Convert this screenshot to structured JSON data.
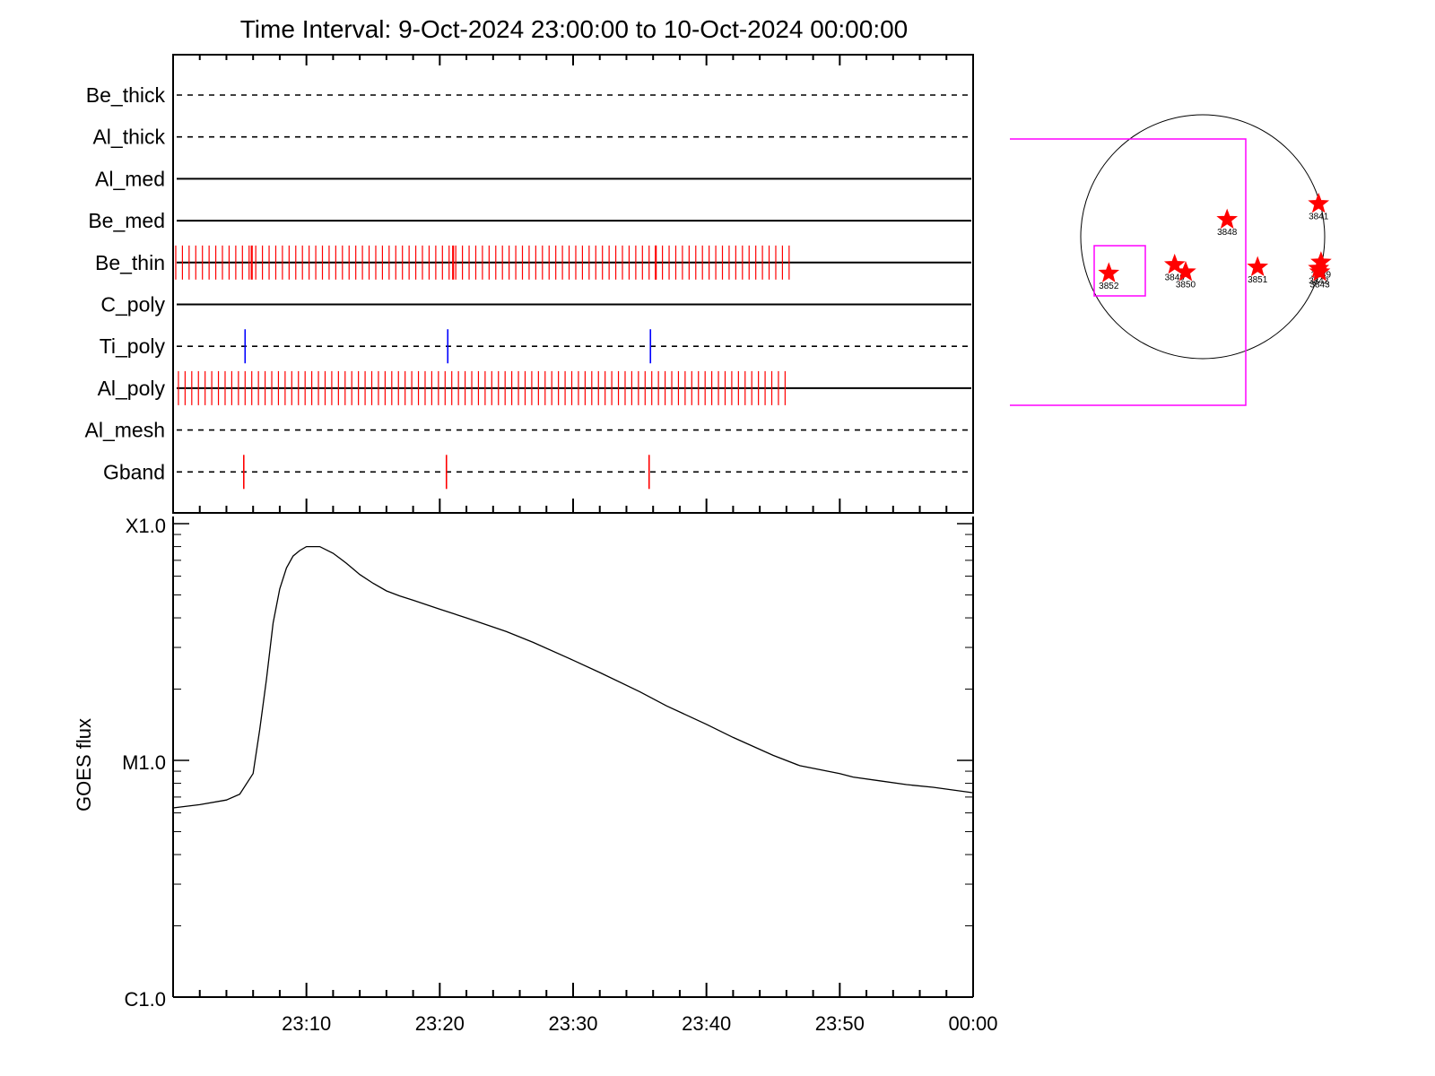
{
  "chart_data": [
    {
      "type": "timeline",
      "title": "Time Interval:  9-Oct-2024 23:00:00 to 10-Oct-2024 00:00:00",
      "x_range_minutes": [
        0,
        60
      ],
      "tick_labels": [
        "23:10",
        "23:20",
        "23:30",
        "23:40",
        "23:50",
        "00:00"
      ],
      "rows": [
        {
          "name": "Be_thick",
          "line": "dashed",
          "markers": []
        },
        {
          "name": "Al_thick",
          "line": "dashed",
          "markers": []
        },
        {
          "name": "Al_med",
          "line": "solid",
          "markers": []
        },
        {
          "name": "Be_med",
          "line": "solid",
          "markers": []
        },
        {
          "name": "Be_thin",
          "line": "solid",
          "marker_color": "#ff0000",
          "marker_range_minutes": [
            0.2,
            46.2
          ],
          "marker_step_minutes": 0.5,
          "tall_marker_minutes": [
            5.9,
            21.0,
            36.2
          ]
        },
        {
          "name": "C_poly",
          "line": "solid",
          "markers": []
        },
        {
          "name": "Ti_poly",
          "line": "dashed",
          "marker_color": "#0000ff",
          "markers": [
            5.4,
            20.6,
            35.8
          ]
        },
        {
          "name": "Al_poly",
          "line": "solid",
          "marker_color": "#ff0000",
          "marker_range_minutes": [
            0.4,
            46.0
          ],
          "marker_step_minutes": 0.5,
          "tall_marker_minutes": []
        },
        {
          "name": "Al_mesh",
          "line": "dashed",
          "markers": []
        },
        {
          "name": "Gband",
          "line": "dashed",
          "marker_color": "#ff0000",
          "markers": [
            5.3,
            20.5,
            35.7
          ]
        }
      ]
    },
    {
      "type": "line",
      "ylabel": "GOES flux",
      "y_scale": "log",
      "y_range_wm2": [
        1e-06,
        0.0001
      ],
      "y_tick_labels": [
        "C1.0",
        "M1.0",
        "X1.0"
      ],
      "y_tick_values": [
        1e-06,
        1e-05,
        0.0001
      ],
      "x_range_minutes": [
        0,
        60
      ],
      "x_tick_labels": [
        "23:10",
        "23:20",
        "23:30",
        "23:40",
        "23:50",
        "00:00"
      ],
      "x_ticks_minutes": [
        10,
        20,
        30,
        40,
        50,
        60
      ],
      "series": [
        {
          "x": [
            0,
            2,
            4,
            5,
            6,
            6.5,
            7,
            7.5,
            8,
            8.5,
            9,
            9.5,
            10,
            11,
            12,
            13,
            14,
            15,
            16,
            17,
            18,
            20,
            22,
            25,
            27,
            30,
            32,
            35,
            37,
            40,
            42,
            45,
            47,
            50,
            51,
            53,
            55,
            57,
            60
          ],
          "y": [
            6.3e-06,
            6.5e-06,
            6.8e-06,
            7.2e-06,
            8.8e-06,
            1.35e-05,
            2.2e-05,
            3.8e-05,
            5.3e-05,
            6.5e-05,
            7.3e-05,
            7.7e-05,
            8e-05,
            8e-05,
            7.5e-05,
            6.8e-05,
            6.1e-05,
            5.6e-05,
            5.2e-05,
            4.95e-05,
            4.75e-05,
            4.35e-05,
            4e-05,
            3.5e-05,
            3.15e-05,
            2.65e-05,
            2.35e-05,
            1.95e-05,
            1.7e-05,
            1.42e-05,
            1.25e-05,
            1.05e-05,
            9.5e-06,
            8.8e-06,
            8.5e-06,
            8.2e-06,
            7.9e-06,
            7.7e-06,
            7.3e-06
          ]
        }
      ]
    },
    {
      "type": "scatter",
      "subtype": "solar-disk-map",
      "points": [
        {
          "label": "3841",
          "x": 0.95,
          "y": 0.27
        },
        {
          "label": "3848",
          "x": 0.2,
          "y": 0.14
        },
        {
          "label": "3849",
          "x": -0.23,
          "y": -0.23
        },
        {
          "label": "3850",
          "x": -0.14,
          "y": -0.29
        },
        {
          "label": "3851",
          "x": 0.45,
          "y": -0.25
        },
        {
          "label": "3852",
          "x": -0.77,
          "y": -0.3
        },
        {
          "label": "3839",
          "x": 0.97,
          "y": -0.21
        },
        {
          "label": "3842",
          "x": 0.95,
          "y": -0.26
        },
        {
          "label": "3843",
          "x": 0.96,
          "y": -0.29
        }
      ]
    }
  ]
}
